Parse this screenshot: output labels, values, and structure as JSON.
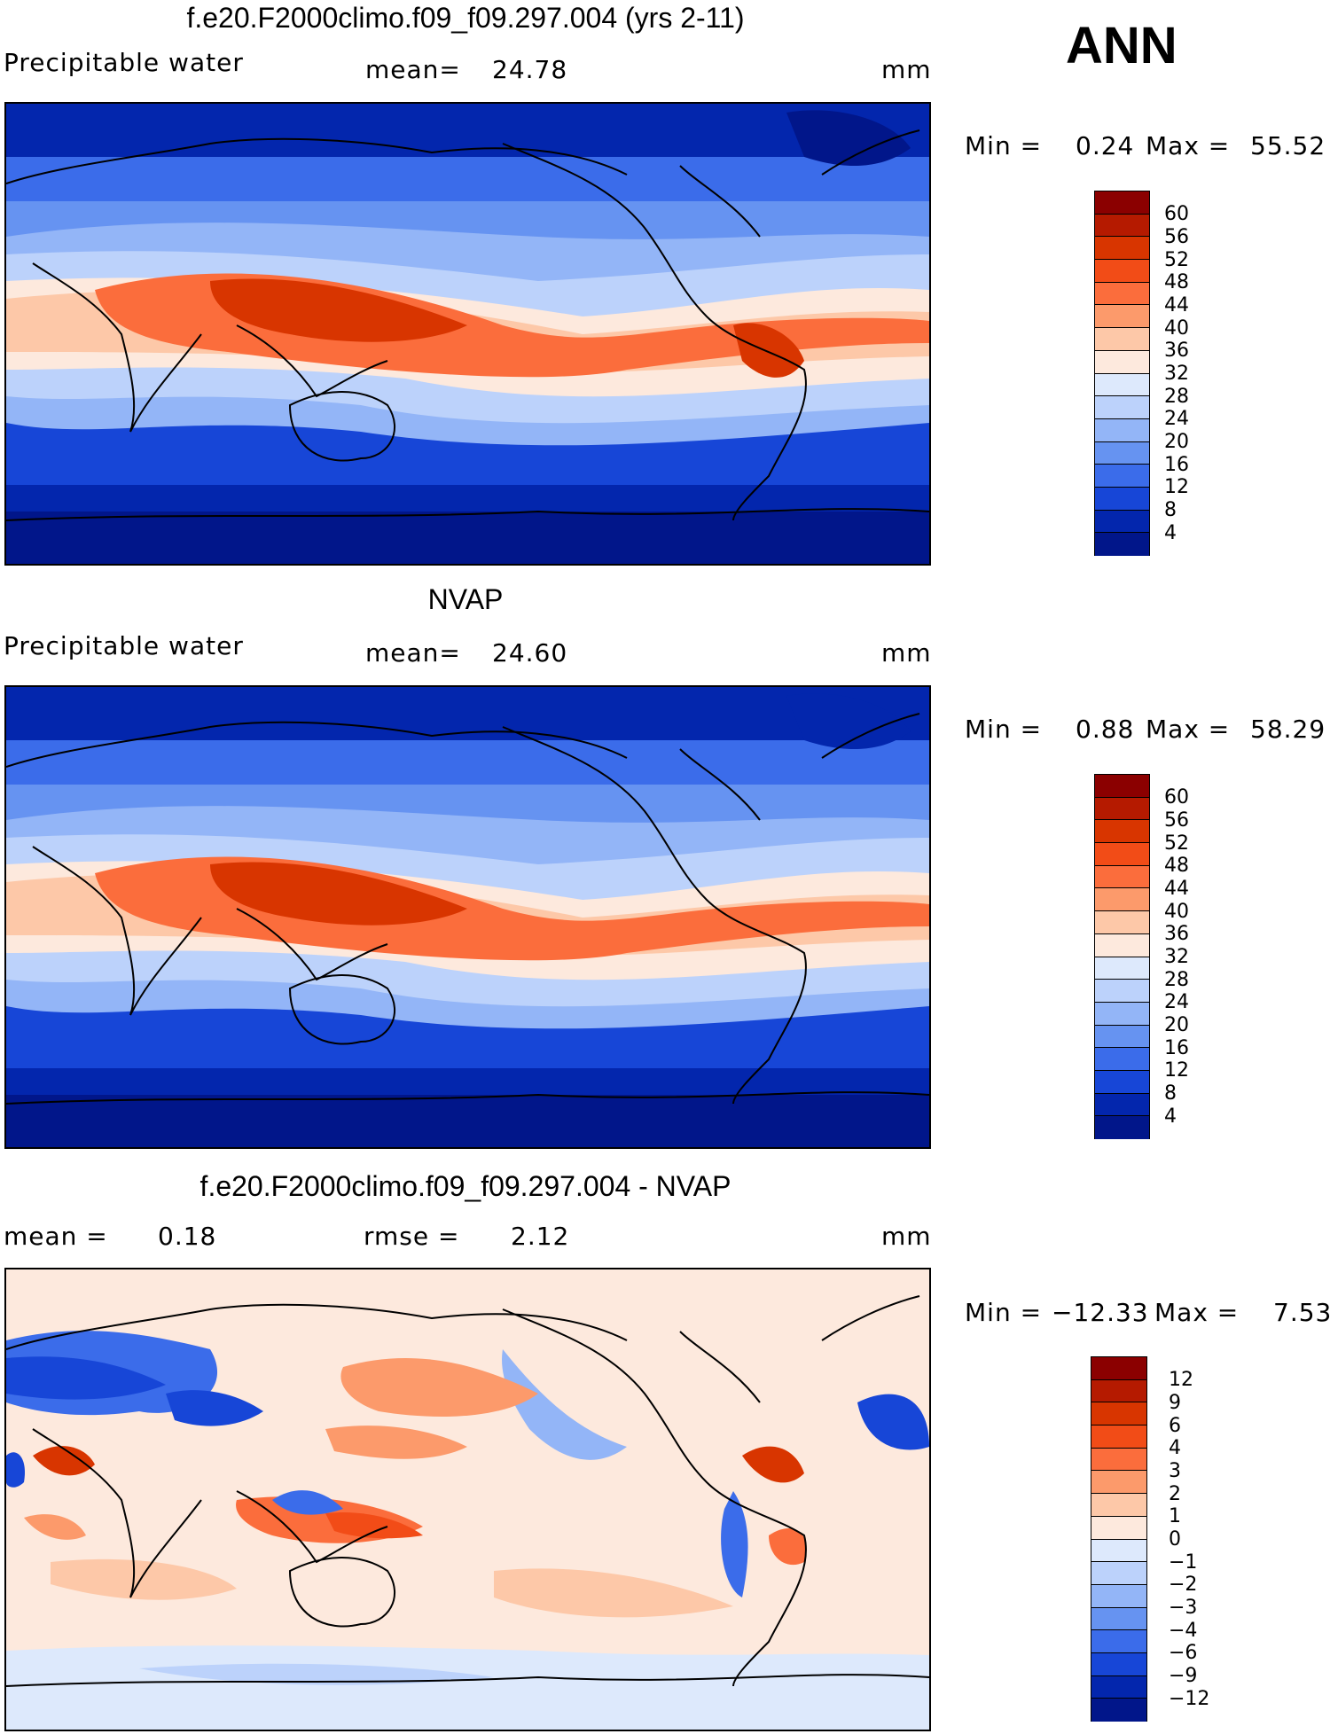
{
  "season": "ANN",
  "panels": [
    {
      "title": "f.e20.F2000climo.f09_f09.297.004 (yrs 2-11)",
      "left_label": "Precipitable  water",
      "stat1_label": "mean=",
      "stat1_value": "24.78",
      "stat2_label": "",
      "stat2_value": "",
      "units": "mm",
      "min_label": "Min =",
      "min_value": "0.24",
      "max_label": "Max =",
      "max_value": "55.52",
      "levels": [
        "60",
        "56",
        "52",
        "48",
        "44",
        "40",
        "36",
        "32",
        "28",
        "24",
        "20",
        "16",
        "12",
        "8",
        "4"
      ],
      "colors": [
        "#8b0000",
        "#b51a00",
        "#d83500",
        "#f24c17",
        "#fb6d3c",
        "#fc9a6b",
        "#fdc8a8",
        "#fde9dd",
        "#dde9fc",
        "#bcd2fb",
        "#93b5f7",
        "#6693f1",
        "#3b6cea",
        "#1746d7",
        "#0326ad",
        "#01168a"
      ]
    },
    {
      "title": "NVAP",
      "left_label": "Precipitable  water",
      "stat1_label": "mean=",
      "stat1_value": "24.60",
      "stat2_label": "",
      "stat2_value": "",
      "units": "mm",
      "min_label": "Min =",
      "min_value": "0.88",
      "max_label": "Max =",
      "max_value": "58.29",
      "levels": [
        "60",
        "56",
        "52",
        "48",
        "44",
        "40",
        "36",
        "32",
        "28",
        "24",
        "20",
        "16",
        "12",
        "8",
        "4"
      ],
      "colors": [
        "#8b0000",
        "#b51a00",
        "#d83500",
        "#f24c17",
        "#fb6d3c",
        "#fc9a6b",
        "#fdc8a8",
        "#fde9dd",
        "#dde9fc",
        "#bcd2fb",
        "#93b5f7",
        "#6693f1",
        "#3b6cea",
        "#1746d7",
        "#0326ad",
        "#01168a"
      ]
    },
    {
      "title": "f.e20.F2000climo.f09_f09.297.004 - NVAP",
      "left_label": "mean =",
      "stat1_label": "0.18",
      "stat1_value": "",
      "stat2_label": "rmse =",
      "stat2_value": "2.12",
      "units": "mm",
      "min_label": "Min =",
      "min_value": "−12.33",
      "max_label": "Max =",
      "max_value": "7.53",
      "levels": [
        "12",
        "9",
        "6",
        "4",
        "3",
        "2",
        "1",
        "0",
        "−1",
        "−2",
        "−3",
        "−4",
        "−6",
        "−9",
        "−12"
      ],
      "colors": [
        "#8b0000",
        "#b51a00",
        "#d83500",
        "#f24c17",
        "#fb6d3c",
        "#fc9a6b",
        "#fdc8a8",
        "#fde9dd",
        "#dde9fc",
        "#bcd2fb",
        "#93b5f7",
        "#6693f1",
        "#3b6cea",
        "#1746d7",
        "#0326ad",
        "#01168a"
      ]
    }
  ]
}
